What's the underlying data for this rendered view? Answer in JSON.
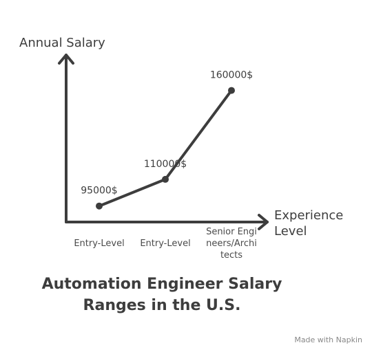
{
  "chart_data": {
    "type": "line",
    "title": "Automation Engineer Salary Ranges in the U.S.",
    "y_label": "Annual Salary",
    "x_label": "Experience Level",
    "categories": [
      "Entry-Level",
      "Entry-Level",
      "Senior Engineers/Architects"
    ],
    "values": [
      95000,
      110000,
      160000
    ],
    "value_labels": [
      "95000$",
      "110000$",
      "160000$"
    ],
    "color": "#3d3d3d",
    "ylim": [
      86000,
      178000
    ]
  },
  "footer": "Made with Napkin"
}
